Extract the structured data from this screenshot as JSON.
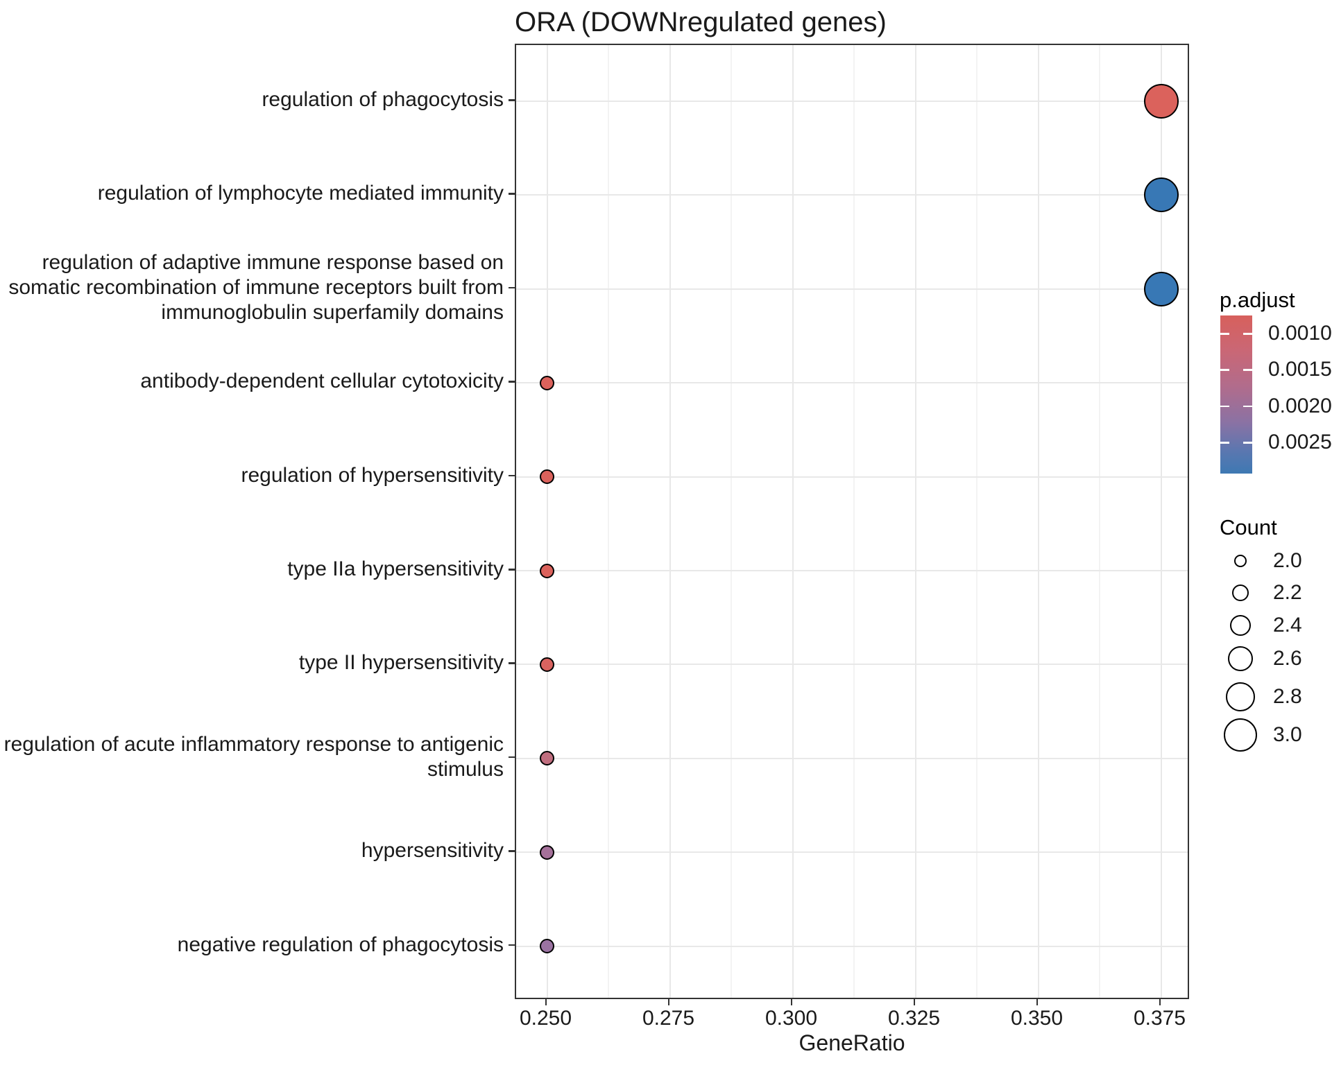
{
  "title": "ORA (DOWNregulated genes)",
  "chart_data": {
    "type": "scatter",
    "title": "ORA (DOWNregulated genes)",
    "xlabel": "GeneRatio",
    "ylabel": "",
    "xlim": [
      0.2437,
      0.3812
    ],
    "x_tick_labels": [
      "0.250",
      "0.275",
      "0.300",
      "0.325",
      "0.350",
      "0.375"
    ],
    "x_tick_values": [
      0.25,
      0.275,
      0.3,
      0.325,
      0.35,
      0.375
    ],
    "grid": true,
    "legend_position": "right",
    "points": [
      {
        "term": "regulation of phagocytosis",
        "gene_ratio": 0.375,
        "count": 3,
        "p_adjust": 0.0008,
        "color": "#db625c"
      },
      {
        "term": "regulation of lymphocyte mediated immunity",
        "gene_ratio": 0.375,
        "count": 3,
        "p_adjust": 0.0029,
        "color": "#3878b5"
      },
      {
        "term": "regulation of adaptive immune response based on somatic recombination of immune receptors built from immunoglobulin superfamily domains",
        "gene_ratio": 0.375,
        "count": 3,
        "p_adjust": 0.0029,
        "color": "#3878b5"
      },
      {
        "term": "antibody-dependent cellular cytotoxicity",
        "gene_ratio": 0.25,
        "count": 2,
        "p_adjust": 0.0008,
        "color": "#db625c"
      },
      {
        "term": "regulation of hypersensitivity",
        "gene_ratio": 0.25,
        "count": 2,
        "p_adjust": 0.0008,
        "color": "#db625c"
      },
      {
        "term": "type IIa hypersensitivity",
        "gene_ratio": 0.25,
        "count": 2,
        "p_adjust": 0.0008,
        "color": "#db625c"
      },
      {
        "term": "type II hypersensitivity",
        "gene_ratio": 0.25,
        "count": 2,
        "p_adjust": 0.0009,
        "color": "#d9635f"
      },
      {
        "term": "regulation of acute inflammatory response to antigenic stimulus",
        "gene_ratio": 0.25,
        "count": 2,
        "p_adjust": 0.0014,
        "color": "#c06e7f"
      },
      {
        "term": "hypersensitivity",
        "gene_ratio": 0.25,
        "count": 2,
        "p_adjust": 0.0018,
        "color": "#a5719a"
      },
      {
        "term": "negative regulation of phagocytosis",
        "gene_ratio": 0.25,
        "count": 2,
        "p_adjust": 0.002,
        "color": "#9b73a2"
      }
    ],
    "legends": {
      "p_adjust": {
        "title": "p.adjust",
        "tick_labels": [
          "0.0010",
          "0.0015",
          "0.0020",
          "0.0025"
        ],
        "tick_values": [
          0.001,
          0.0015,
          0.002,
          0.0025
        ],
        "range": [
          0.00075,
          0.00293
        ],
        "gradient_top_color": "#d7605c",
        "gradient_bottom_color": "#3e79b3"
      },
      "count": {
        "title": "Count",
        "items": [
          {
            "label": "2.0",
            "value": 2.0
          },
          {
            "label": "2.2",
            "value": 2.2
          },
          {
            "label": "2.4",
            "value": 2.4
          },
          {
            "label": "2.6",
            "value": 2.6
          },
          {
            "label": "2.8",
            "value": 2.8
          },
          {
            "label": "3.0",
            "value": 3.0
          }
        ]
      }
    }
  }
}
